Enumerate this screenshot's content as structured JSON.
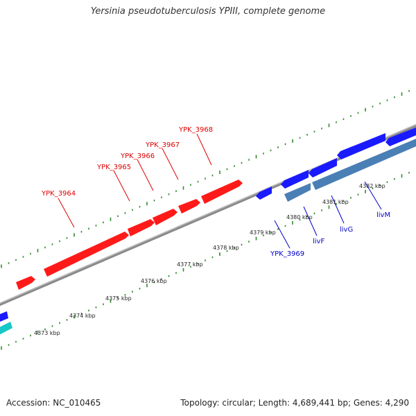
{
  "title": "Yersinia pseudotuberculosis YPIII, complete genome",
  "accession_text": "Accession: NC_010465",
  "topology_text": "Topology: circular; Length: 4,689,441 bp; Genes: 4,290",
  "colors": {
    "backbone": "#8a8a8a",
    "forward_gene": "#ff1a1a",
    "reverse_gene_blue": "#1a1aff",
    "reverse_gene_steel": "#4a7fb5",
    "cyan_gene": "#18c8c8",
    "gc_ticks": "#2e8b2e",
    "forward_label": "#dd0000",
    "reverse_label": "#0000cc"
  },
  "ticks": [
    "4373 kbp",
    "4374 kbp",
    "4375 kbp",
    "4376 kbp",
    "4377 kbp",
    "4378 kbp",
    "4379 kbp",
    "4380 kbp",
    "4381 kbp",
    "4382 kbp"
  ],
  "forward_genes": [
    {
      "label": "YPK_3964"
    },
    {
      "label": "YPK_3965"
    },
    {
      "label": "YPK_3966"
    },
    {
      "label": "YPK_3967"
    },
    {
      "label": "YPK_3968"
    }
  ],
  "reverse_genes": [
    {
      "label": "YPK_3969"
    },
    {
      "label": "livF"
    },
    {
      "label": "livG"
    },
    {
      "label": "livM"
    }
  ]
}
